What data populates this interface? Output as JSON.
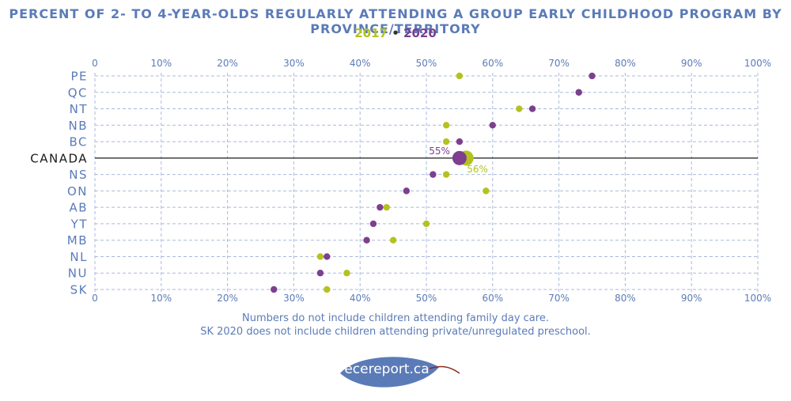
{
  "chart_data": {
    "type": "scatter",
    "title": "PERCENT OF 2- TO 4-YEAR-OLDS REGULARLY ATTENDING A GROUP EARLY CHILDHOOD PROGRAM BY PROVINCE/TERRITORY",
    "legend": {
      "label_2017": "2017",
      "separator": "•",
      "label_2020": "2020"
    },
    "xlim": [
      0,
      100
    ],
    "x_ticks": [
      "0",
      "10%",
      "20%",
      "30%",
      "40%",
      "50%",
      "60%",
      "70%",
      "80%",
      "90%",
      "100%"
    ],
    "categories": [
      "PE",
      "QC",
      "NT",
      "NB",
      "BC",
      "CANADA",
      "NS",
      "ON",
      "AB",
      "YT",
      "MB",
      "NL",
      "NU",
      "SK"
    ],
    "series": [
      {
        "name": "2017",
        "color": "#b4c21f",
        "values": [
          55,
          73,
          64,
          53,
          53,
          56,
          53,
          59,
          44,
          50,
          45,
          34,
          38,
          35
        ]
      },
      {
        "name": "2020",
        "color": "#7d3f8e",
        "values": [
          75,
          73,
          66,
          60,
          55,
          55,
          51,
          47,
          43,
          42,
          41,
          35,
          34,
          27
        ]
      }
    ],
    "highlight_category": "CANADA",
    "data_labels": {
      "2017": "56%",
      "2020": "55%"
    },
    "grid": true
  },
  "notes": [
    "Numbers do not include children attending family day care.",
    "SK 2020 does not include children attending private/unregulated preschool."
  ],
  "logo": {
    "text": "ecereport.ca",
    "leaf_color": "#5b7bb8",
    "stem_color": "#8b2b1f"
  },
  "colors": {
    "axis_text": "#5b7bb8",
    "grid": "#a9b9dd"
  }
}
